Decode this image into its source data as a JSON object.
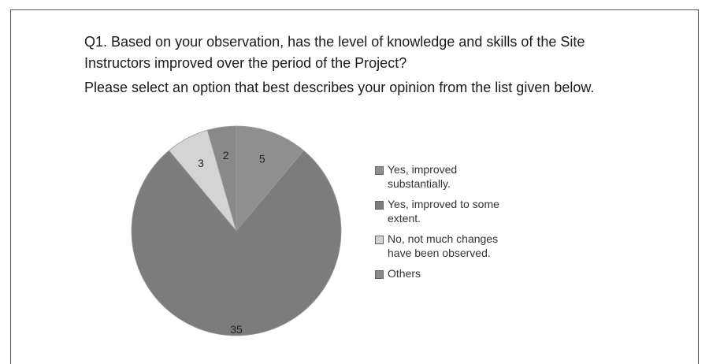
{
  "chart_data": {
    "type": "pie",
    "title": "Q1. Based on your observation, has the level of knowledge and skills of the Site Instructors improved over the period of the Project?",
    "subtitle": "Please select an option that best describes your opinion from the list given below.",
    "categories": [
      "Yes, improved substantially.",
      "Yes, improved to some extent.",
      "No, not much changes have been observed.",
      "Others"
    ],
    "values": [
      5,
      35,
      3,
      2
    ],
    "colors": [
      "#8f8f8f",
      "#7c7c7c",
      "#d4d4d4",
      "#898989"
    ],
    "legend": "right"
  }
}
